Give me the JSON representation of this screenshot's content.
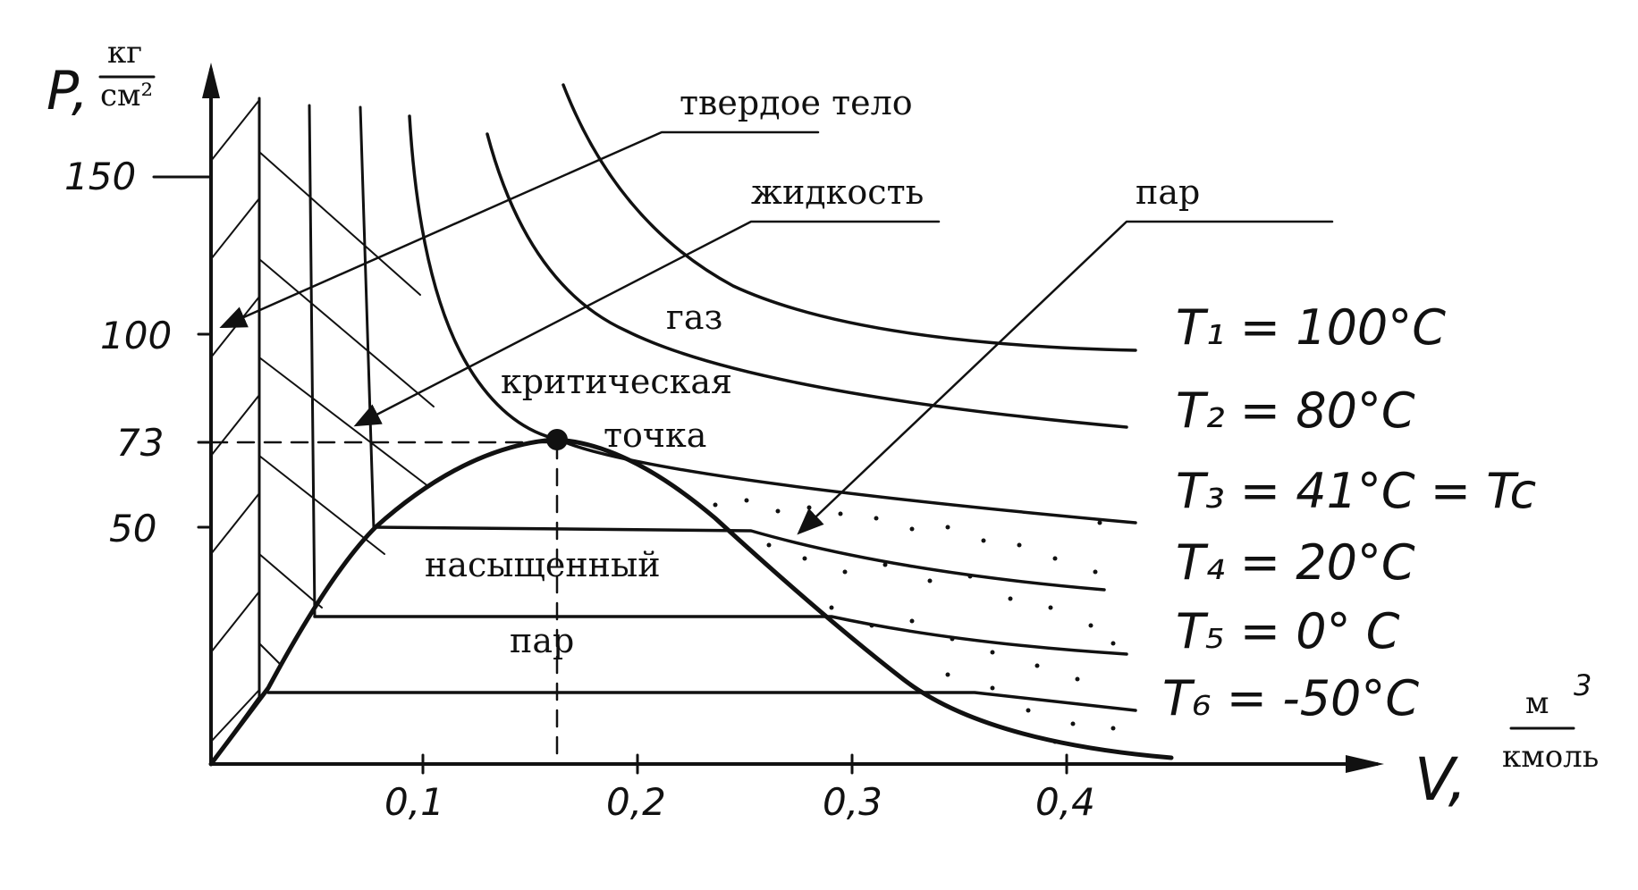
{
  "axes": {
    "y_label": "P,",
    "y_unit_num": "кг",
    "y_unit_den": "см²",
    "x_label": "V,",
    "x_unit_num": "м",
    "x_unit_exp": "3",
    "x_unit_den": "кмоль",
    "y_ticks": [
      "150",
      "100",
      "73",
      "50"
    ],
    "x_ticks": [
      "0,1",
      "0,2",
      "0,3",
      "0,4"
    ]
  },
  "regions": {
    "solid": "твердое тело",
    "liquid": "жидкость",
    "vapor": "пар",
    "gas": "газ",
    "critical_1": "критическая",
    "critical_2": "точка",
    "saturated_1": "насыщенный",
    "saturated_2": "пар"
  },
  "isotherms": [
    {
      "label": "T₁ = 100°C"
    },
    {
      "label": "T₂ = 80°C"
    },
    {
      "label": "T₃ = 41°C = Tc"
    },
    {
      "label": "T₄ = 20°C"
    },
    {
      "label": "T₅ = 0° C"
    },
    {
      "label": "T₆ = -50°C"
    }
  ],
  "critical_point": {
    "V": 0.16,
    "P": 73
  },
  "colors": {
    "ink": "#111111",
    "paper": "#ffffff"
  }
}
